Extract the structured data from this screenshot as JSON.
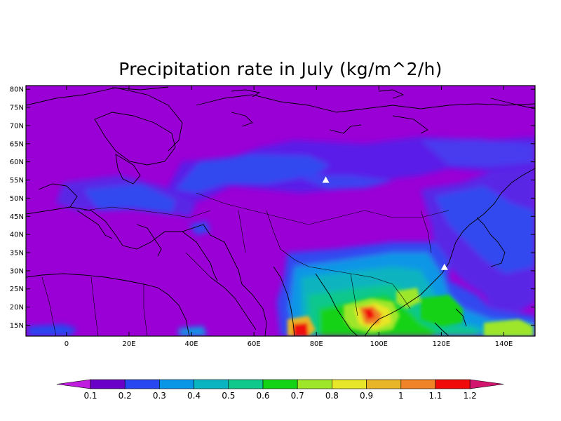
{
  "title": "Precipitation rate in July (kg/m^2/h)",
  "map": {
    "lat_labels": [
      "80N",
      "75N",
      "70N",
      "65N",
      "60N",
      "55N",
      "50N",
      "45N",
      "40N",
      "35N",
      "30N",
      "25N",
      "20N",
      "15N"
    ],
    "lat_values": [
      80,
      75,
      70,
      65,
      60,
      55,
      50,
      45,
      40,
      35,
      30,
      25,
      20,
      15
    ],
    "lon_labels": [
      "0",
      "20E",
      "40E",
      "60E",
      "80E",
      "100E",
      "120E",
      "140E"
    ],
    "lon_values": [
      0,
      20,
      40,
      60,
      80,
      100,
      120,
      140
    ],
    "lon_range": [
      -13,
      150
    ],
    "lat_range": [
      12,
      81
    ],
    "markers": [
      {
        "name": "station-marker-siberia",
        "lon": 83,
        "lat": 55
      },
      {
        "name": "station-marker-shanghai",
        "lon": 121,
        "lat": 31
      }
    ]
  },
  "colorbar": {
    "levels": [
      "0.1",
      "0.2",
      "0.3",
      "0.4",
      "0.5",
      "0.6",
      "0.7",
      "0.8",
      "0.9",
      "1",
      "1.1",
      "1.2"
    ],
    "colors": [
      "#c01ce0",
      "#6a00c8",
      "#2847f0",
      "#0a96e6",
      "#0ab4c0",
      "#10c88c",
      "#14d214",
      "#9ee62a",
      "#e8e628",
      "#e8b428",
      "#f08228",
      "#f00a0a",
      "#d2146e"
    ]
  }
}
